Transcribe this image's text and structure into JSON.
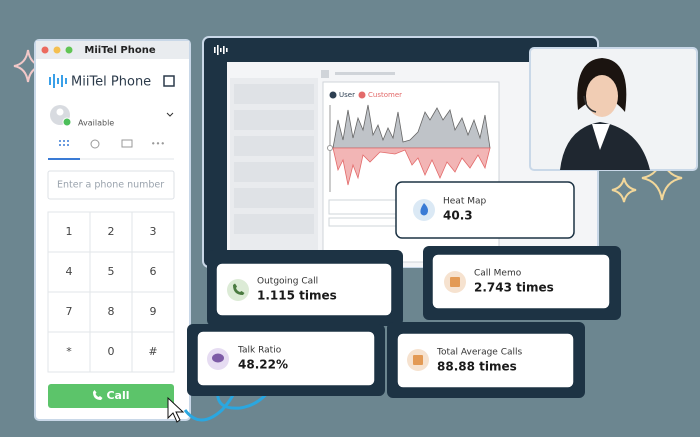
{
  "window": {
    "title": "MiiTel Phone"
  },
  "phone": {
    "logo": "MiiTel Phone",
    "status": "Available",
    "input_placeholder": "Enter a phone number",
    "keypad": [
      "1",
      "2",
      "3",
      "4",
      "5",
      "6",
      "7",
      "8",
      "9",
      "*",
      "0",
      "#"
    ],
    "call_button": "Call"
  },
  "dashboard": {
    "legend": [
      "User",
      "Customer"
    ]
  },
  "metrics": [
    {
      "label": "Heat Map",
      "value": "40.3"
    },
    {
      "label": "Outgoing Call",
      "value": "1.115 times"
    },
    {
      "label": "Call Memo",
      "value": "2.743 times"
    },
    {
      "label": "Talk Ratio",
      "value": "48.22%"
    },
    {
      "label": "Total Average Calls",
      "value": "88.88 times"
    }
  ]
}
